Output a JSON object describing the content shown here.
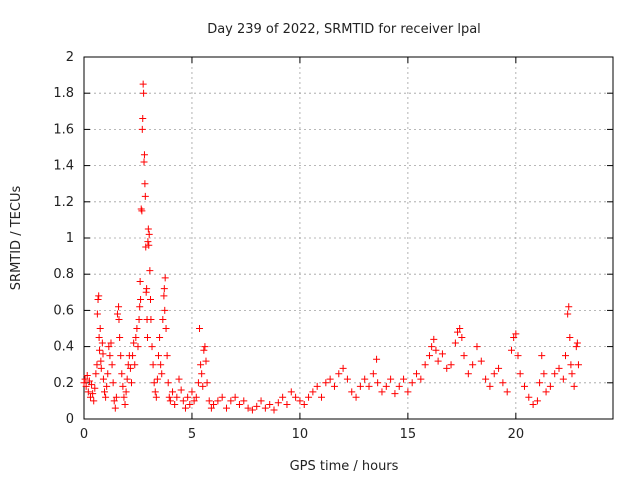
{
  "chart_data": {
    "type": "scatter",
    "title": "Day 239 of 2022, SRMTID for receiver lpal",
    "xlabel": "GPS time / hours",
    "ylabel": "SRMTID / TECUs",
    "xlim": [
      0,
      24.5
    ],
    "ylim": [
      0,
      2
    ],
    "xticks": [
      0,
      5,
      10,
      15,
      20
    ],
    "xtick_labels": [
      "0",
      "5",
      "10",
      "15",
      "20"
    ],
    "yticks": [
      0,
      0.2,
      0.4,
      0.6,
      0.8,
      1,
      1.2,
      1.4,
      1.6,
      1.8,
      2
    ],
    "ytick_labels": [
      "0",
      "0.2",
      "0.4",
      "0.6",
      "0.8",
      "1",
      "1.2",
      "1.4",
      "1.6",
      "1.8",
      "2"
    ],
    "grid": true,
    "marker": "+",
    "series": [
      {
        "name": "SRMTID",
        "color": "#ff0000",
        "points": [
          [
            0.0,
            0.2
          ],
          [
            0.05,
            0.22
          ],
          [
            0.1,
            0.18
          ],
          [
            0.15,
            0.24
          ],
          [
            0.2,
            0.15
          ],
          [
            0.25,
            0.21
          ],
          [
            0.3,
            0.12
          ],
          [
            0.35,
            0.19
          ],
          [
            0.4,
            0.14
          ],
          [
            0.45,
            0.1
          ],
          [
            0.5,
            0.17
          ],
          [
            0.55,
            0.25
          ],
          [
            0.6,
            0.3
          ],
          [
            0.62,
            0.58
          ],
          [
            0.65,
            0.66
          ],
          [
            0.68,
            0.68
          ],
          [
            0.7,
            0.45
          ],
          [
            0.72,
            0.38
          ],
          [
            0.75,
            0.5
          ],
          [
            0.78,
            0.32
          ],
          [
            0.8,
            0.28
          ],
          [
            0.85,
            0.42
          ],
          [
            0.88,
            0.36
          ],
          [
            0.9,
            0.22
          ],
          [
            0.95,
            0.15
          ],
          [
            1.0,
            0.12
          ],
          [
            1.05,
            0.18
          ],
          [
            1.1,
            0.25
          ],
          [
            1.15,
            0.4
          ],
          [
            1.2,
            0.35
          ],
          [
            1.25,
            0.42
          ],
          [
            1.3,
            0.3
          ],
          [
            1.35,
            0.2
          ],
          [
            1.4,
            0.1
          ],
          [
            1.45,
            0.06
          ],
          [
            1.5,
            0.12
          ],
          [
            1.55,
            0.58
          ],
          [
            1.6,
            0.62
          ],
          [
            1.62,
            0.55
          ],
          [
            1.65,
            0.45
          ],
          [
            1.7,
            0.35
          ],
          [
            1.75,
            0.25
          ],
          [
            1.8,
            0.18
          ],
          [
            1.85,
            0.12
          ],
          [
            1.9,
            0.08
          ],
          [
            1.95,
            0.15
          ],
          [
            2.0,
            0.22
          ],
          [
            2.05,
            0.3
          ],
          [
            2.1,
            0.35
          ],
          [
            2.15,
            0.28
          ],
          [
            2.2,
            0.2
          ],
          [
            2.25,
            0.35
          ],
          [
            2.3,
            0.42
          ],
          [
            2.35,
            0.3
          ],
          [
            2.4,
            0.45
          ],
          [
            2.45,
            0.5
          ],
          [
            2.5,
            0.4
          ],
          [
            2.55,
            0.55
          ],
          [
            2.58,
            0.62
          ],
          [
            2.6,
            0.76
          ],
          [
            2.62,
            0.66
          ],
          [
            2.65,
            1.16
          ],
          [
            2.68,
            1.15
          ],
          [
            2.7,
            1.6
          ],
          [
            2.72,
            1.66
          ],
          [
            2.74,
            1.85
          ],
          [
            2.76,
            1.8
          ],
          [
            2.78,
            1.42
          ],
          [
            2.8,
            1.46
          ],
          [
            2.82,
            1.3
          ],
          [
            2.84,
            1.23
          ],
          [
            2.86,
            0.95
          ],
          [
            2.88,
            0.7
          ],
          [
            2.9,
            0.72
          ],
          [
            2.92,
            0.55
          ],
          [
            2.94,
            0.45
          ],
          [
            2.96,
            0.98
          ],
          [
            2.98,
            1.05
          ],
          [
            3.0,
            0.96
          ],
          [
            3.02,
            1.02
          ],
          [
            3.05,
            0.82
          ],
          [
            3.08,
            0.66
          ],
          [
            3.1,
            0.55
          ],
          [
            3.15,
            0.4
          ],
          [
            3.2,
            0.3
          ],
          [
            3.25,
            0.2
          ],
          [
            3.3,
            0.15
          ],
          [
            3.35,
            0.12
          ],
          [
            3.4,
            0.22
          ],
          [
            3.45,
            0.35
          ],
          [
            3.5,
            0.45
          ],
          [
            3.55,
            0.3
          ],
          [
            3.6,
            0.25
          ],
          [
            3.65,
            0.55
          ],
          [
            3.7,
            0.68
          ],
          [
            3.72,
            0.72
          ],
          [
            3.74,
            0.6
          ],
          [
            3.76,
            0.78
          ],
          [
            3.8,
            0.5
          ],
          [
            3.85,
            0.35
          ],
          [
            3.9,
            0.2
          ],
          [
            3.95,
            0.12
          ],
          [
            4.0,
            0.1
          ],
          [
            4.1,
            0.15
          ],
          [
            4.2,
            0.08
          ],
          [
            4.3,
            0.12
          ],
          [
            4.4,
            0.22
          ],
          [
            4.5,
            0.16
          ],
          [
            4.6,
            0.1
          ],
          [
            4.7,
            0.06
          ],
          [
            4.8,
            0.12
          ],
          [
            4.9,
            0.08
          ],
          [
            5.0,
            0.15
          ],
          [
            5.1,
            0.1
          ],
          [
            5.2,
            0.12
          ],
          [
            5.3,
            0.2
          ],
          [
            5.35,
            0.5
          ],
          [
            5.4,
            0.3
          ],
          [
            5.45,
            0.25
          ],
          [
            5.5,
            0.18
          ],
          [
            5.55,
            0.38
          ],
          [
            5.6,
            0.4
          ],
          [
            5.65,
            0.32
          ],
          [
            5.7,
            0.2
          ],
          [
            5.8,
            0.1
          ],
          [
            5.9,
            0.06
          ],
          [
            6.0,
            0.08
          ],
          [
            6.2,
            0.1
          ],
          [
            6.4,
            0.12
          ],
          [
            6.6,
            0.06
          ],
          [
            6.8,
            0.1
          ],
          [
            7.0,
            0.12
          ],
          [
            7.2,
            0.08
          ],
          [
            7.4,
            0.1
          ],
          [
            7.6,
            0.06
          ],
          [
            7.8,
            0.05
          ],
          [
            8.0,
            0.07
          ],
          [
            8.2,
            0.1
          ],
          [
            8.4,
            0.06
          ],
          [
            8.6,
            0.08
          ],
          [
            8.8,
            0.05
          ],
          [
            9.0,
            0.09
          ],
          [
            9.2,
            0.12
          ],
          [
            9.4,
            0.08
          ],
          [
            9.6,
            0.15
          ],
          [
            9.8,
            0.12
          ],
          [
            10.0,
            0.1
          ],
          [
            10.2,
            0.08
          ],
          [
            10.4,
            0.12
          ],
          [
            10.6,
            0.15
          ],
          [
            10.8,
            0.18
          ],
          [
            11.0,
            0.12
          ],
          [
            11.2,
            0.2
          ],
          [
            11.4,
            0.22
          ],
          [
            11.6,
            0.18
          ],
          [
            11.8,
            0.25
          ],
          [
            12.0,
            0.28
          ],
          [
            12.2,
            0.22
          ],
          [
            12.4,
            0.15
          ],
          [
            12.6,
            0.12
          ],
          [
            12.8,
            0.18
          ],
          [
            13.0,
            0.22
          ],
          [
            13.2,
            0.18
          ],
          [
            13.4,
            0.25
          ],
          [
            13.55,
            0.33
          ],
          [
            13.6,
            0.2
          ],
          [
            13.8,
            0.15
          ],
          [
            14.0,
            0.18
          ],
          [
            14.2,
            0.22
          ],
          [
            14.4,
            0.14
          ],
          [
            14.6,
            0.18
          ],
          [
            14.8,
            0.22
          ],
          [
            15.0,
            0.15
          ],
          [
            15.2,
            0.2
          ],
          [
            15.4,
            0.25
          ],
          [
            15.6,
            0.22
          ],
          [
            15.8,
            0.3
          ],
          [
            16.0,
            0.35
          ],
          [
            16.1,
            0.4
          ],
          [
            16.2,
            0.44
          ],
          [
            16.3,
            0.38
          ],
          [
            16.4,
            0.32
          ],
          [
            16.6,
            0.36
          ],
          [
            16.8,
            0.28
          ],
          [
            17.0,
            0.3
          ],
          [
            17.2,
            0.42
          ],
          [
            17.3,
            0.48
          ],
          [
            17.4,
            0.5
          ],
          [
            17.5,
            0.45
          ],
          [
            17.6,
            0.35
          ],
          [
            17.8,
            0.25
          ],
          [
            18.0,
            0.3
          ],
          [
            18.2,
            0.4
          ],
          [
            18.4,
            0.32
          ],
          [
            18.6,
            0.22
          ],
          [
            18.8,
            0.18
          ],
          [
            19.0,
            0.25
          ],
          [
            19.2,
            0.28
          ],
          [
            19.4,
            0.2
          ],
          [
            19.6,
            0.15
          ],
          [
            19.8,
            0.38
          ],
          [
            19.9,
            0.45
          ],
          [
            20.0,
            0.47
          ],
          [
            20.1,
            0.35
          ],
          [
            20.2,
            0.25
          ],
          [
            20.4,
            0.18
          ],
          [
            20.6,
            0.12
          ],
          [
            20.8,
            0.08
          ],
          [
            21.0,
            0.1
          ],
          [
            21.1,
            0.2
          ],
          [
            21.2,
            0.35
          ],
          [
            21.3,
            0.25
          ],
          [
            21.4,
            0.15
          ],
          [
            21.6,
            0.18
          ],
          [
            21.8,
            0.25
          ],
          [
            22.0,
            0.28
          ],
          [
            22.2,
            0.22
          ],
          [
            22.3,
            0.35
          ],
          [
            22.4,
            0.58
          ],
          [
            22.45,
            0.62
          ],
          [
            22.5,
            0.45
          ],
          [
            22.55,
            0.3
          ],
          [
            22.6,
            0.25
          ],
          [
            22.7,
            0.18
          ],
          [
            22.8,
            0.4
          ],
          [
            22.85,
            0.42
          ],
          [
            22.9,
            0.3
          ]
        ]
      }
    ]
  }
}
